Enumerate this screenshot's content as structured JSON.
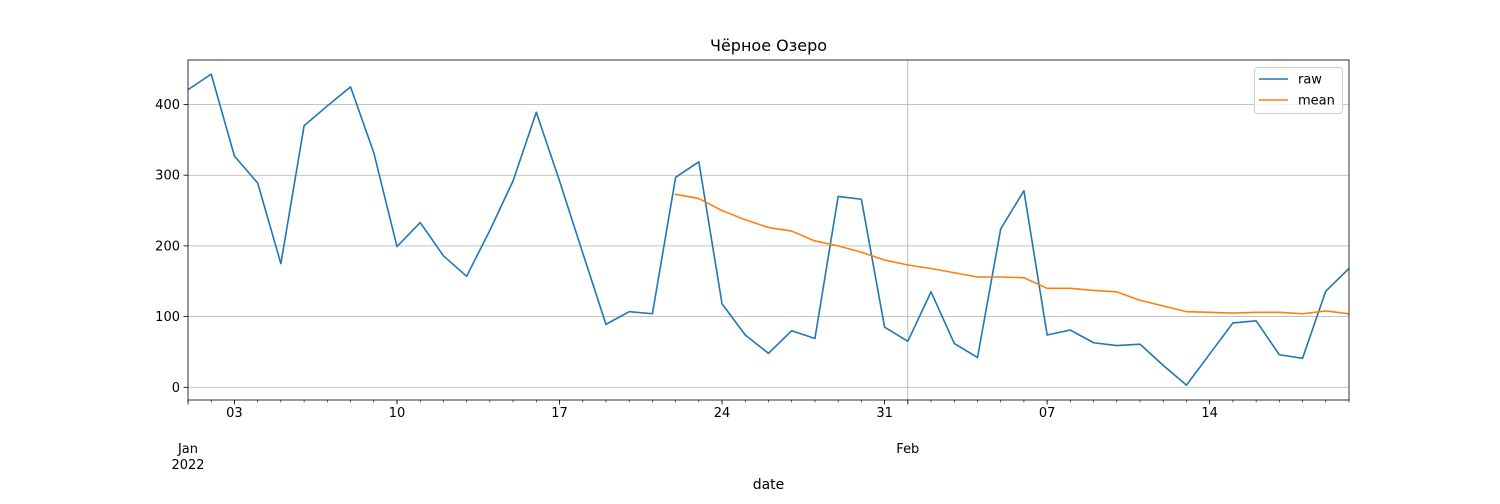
{
  "chart_data": {
    "type": "line",
    "title": "Чёрное Озеро",
    "xlabel": "date",
    "ylabel": "",
    "ylim": [
      -18,
      463
    ],
    "xlim": [
      "2022-01-01",
      "2022-02-20"
    ],
    "grid": "on",
    "legend_position": "top-right",
    "x_minor_ticks": "daily",
    "x_major_ticks": [
      {
        "date": "2022-01-03",
        "label": "03"
      },
      {
        "date": "2022-01-10",
        "label": "10"
      },
      {
        "date": "2022-01-17",
        "label": "17"
      },
      {
        "date": "2022-01-24",
        "label": "24"
      },
      {
        "date": "2022-01-31",
        "label": "31"
      },
      {
        "date": "2022-02-07",
        "label": "07"
      },
      {
        "date": "2022-02-14",
        "label": "14"
      }
    ],
    "x_secondary_labels": [
      {
        "date": "2022-01-01",
        "lines": [
          "Jan",
          "2022"
        ]
      },
      {
        "date": "2022-02-01",
        "lines": [
          "Feb"
        ]
      }
    ],
    "gridline_x": [
      "2022-02-01"
    ],
    "y_ticks": [
      0,
      100,
      200,
      300,
      400
    ],
    "colors": {
      "raw": "#1f77b4",
      "mean": "#ff7f0e"
    },
    "series": [
      {
        "name": "raw",
        "start": "2022-01-01",
        "values": [
          421,
          443,
          327,
          289,
          175,
          370,
          398,
          425,
          332,
          199,
          233,
          186,
          157,
          222,
          292,
          389,
          292,
          190,
          89,
          107,
          104,
          297,
          319,
          118,
          74,
          48,
          80,
          69,
          270,
          266,
          85,
          65,
          135,
          62,
          42,
          224,
          278,
          74,
          81,
          63,
          59,
          61,
          31,
          3,
          47,
          91,
          94,
          46,
          41,
          136,
          168
        ]
      },
      {
        "name": "mean",
        "start": "2022-01-22",
        "values": [
          273,
          267,
          250,
          237,
          226,
          221,
          207,
          200,
          191,
          180,
          173,
          168,
          162,
          156,
          156,
          155,
          140,
          140,
          137,
          135,
          123,
          115,
          107,
          106,
          105,
          106,
          106,
          104,
          108,
          104
        ]
      }
    ]
  }
}
